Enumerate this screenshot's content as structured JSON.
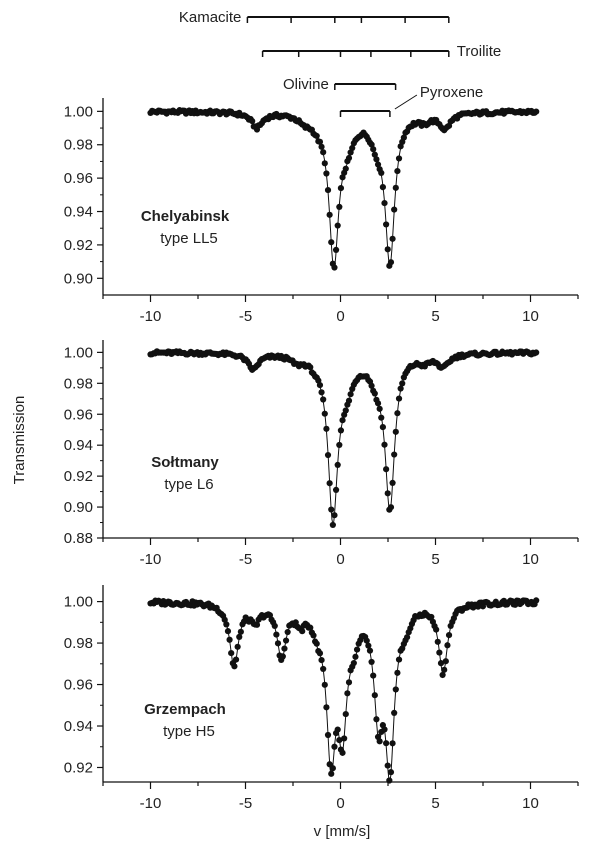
{
  "chart_data": {
    "type": "scatter",
    "xlabel": "v [mm/s]",
    "ylabel": "Transmission",
    "xlim": [
      -12.5,
      12.5
    ],
    "x_ticks": [
      -10,
      -5,
      0,
      5,
      10
    ],
    "x_tick_labels": [
      "-10",
      "-5",
      "0",
      "5",
      "10"
    ],
    "legend": "none",
    "grid": false,
    "panels": [
      {
        "name": "Chelyabinsk",
        "type_label": "type LL5",
        "ylim": [
          0.89,
          1.008
        ],
        "y_ticks": [
          0.9,
          0.92,
          0.94,
          0.96,
          0.98,
          1.0
        ],
        "y_tick_labels": [
          "0.90",
          "0.92",
          "0.94",
          "0.96",
          "0.98",
          "1.00"
        ],
        "x_axis_labels_shown": true,
        "baseline": 1.0,
        "dips": [
          [
            -4.4,
            0.009,
            0.35
          ],
          [
            -1.9,
            0.004,
            0.35
          ],
          [
            -1.2,
            0.004,
            0.35
          ],
          [
            -0.35,
            0.088,
            0.3
          ],
          [
            0.35,
            0.015,
            0.45
          ],
          [
            1.9,
            0.012,
            0.4
          ],
          [
            2.6,
            0.088,
            0.3
          ],
          [
            4.4,
            0.004,
            0.35
          ],
          [
            5.5,
            0.009,
            0.35
          ]
        ],
        "series_marker": "filled-circle"
      },
      {
        "name": "Sołtmany",
        "type_label": "type L6",
        "ylim": [
          0.88,
          1.008
        ],
        "y_ticks": [
          0.88,
          0.9,
          0.92,
          0.94,
          0.96,
          0.98,
          1.0
        ],
        "y_tick_labels": [
          "0.88",
          "0.90",
          "0.92",
          "0.94",
          "0.96",
          "0.98",
          "1.00"
        ],
        "x_axis_labels_shown": true,
        "baseline": 1.0,
        "dips": [
          [
            -4.6,
            0.01,
            0.35
          ],
          [
            -2.3,
            0.004,
            0.35
          ],
          [
            -1.3,
            0.003,
            0.35
          ],
          [
            -0.4,
            0.104,
            0.3
          ],
          [
            0.3,
            0.018,
            0.45
          ],
          [
            1.9,
            0.012,
            0.4
          ],
          [
            2.6,
            0.098,
            0.3
          ],
          [
            4.4,
            0.004,
            0.35
          ],
          [
            5.4,
            0.008,
            0.35
          ]
        ],
        "series_marker": "filled-circle"
      },
      {
        "name": "Grzempach",
        "type_label": "type H5",
        "ylim": [
          0.913,
          1.008
        ],
        "y_ticks": [
          0.92,
          0.94,
          0.96,
          0.98,
          1.0
        ],
        "y_tick_labels": [
          "0.92",
          "0.94",
          "0.96",
          "0.98",
          "1.00"
        ],
        "x_axis_labels_shown": true,
        "baseline": 1.0,
        "dips": [
          [
            -5.6,
            0.03,
            0.28
          ],
          [
            -4.5,
            0.008,
            0.3
          ],
          [
            -3.1,
            0.025,
            0.28
          ],
          [
            -2.1,
            0.007,
            0.3
          ],
          [
            -1.2,
            0.008,
            0.3
          ],
          [
            -0.5,
            0.07,
            0.28
          ],
          [
            0.1,
            0.055,
            0.28
          ],
          [
            0.7,
            0.012,
            0.3
          ],
          [
            2.0,
            0.05,
            0.28
          ],
          [
            2.6,
            0.075,
            0.28
          ],
          [
            3.4,
            0.008,
            0.3
          ],
          [
            5.4,
            0.033,
            0.28
          ]
        ],
        "series_marker": "filled-circle"
      }
    ],
    "reference_bars": [
      {
        "label": "Kamacite",
        "x_start": -4.9,
        "x_end": 5.7,
        "ticks": [
          -4.9,
          -2.6,
          -0.3,
          1.1,
          3.4,
          5.7
        ],
        "label_side": "left"
      },
      {
        "label": "Troilite",
        "x_start": -4.1,
        "x_end": 5.7,
        "ticks": [
          -4.1,
          -2.2,
          0.0,
          1.6,
          3.7,
          5.7
        ],
        "label_side": "right"
      },
      {
        "label": "Olivine",
        "x_start": -0.3,
        "x_end": 2.9,
        "ticks": [
          -0.3,
          2.9
        ],
        "label_side": "left"
      },
      {
        "label": "Pyroxene",
        "x_start": 0.0,
        "x_end": 2.6,
        "ticks": [
          0.0,
          2.6
        ],
        "label_side": "right-pointer"
      }
    ]
  }
}
